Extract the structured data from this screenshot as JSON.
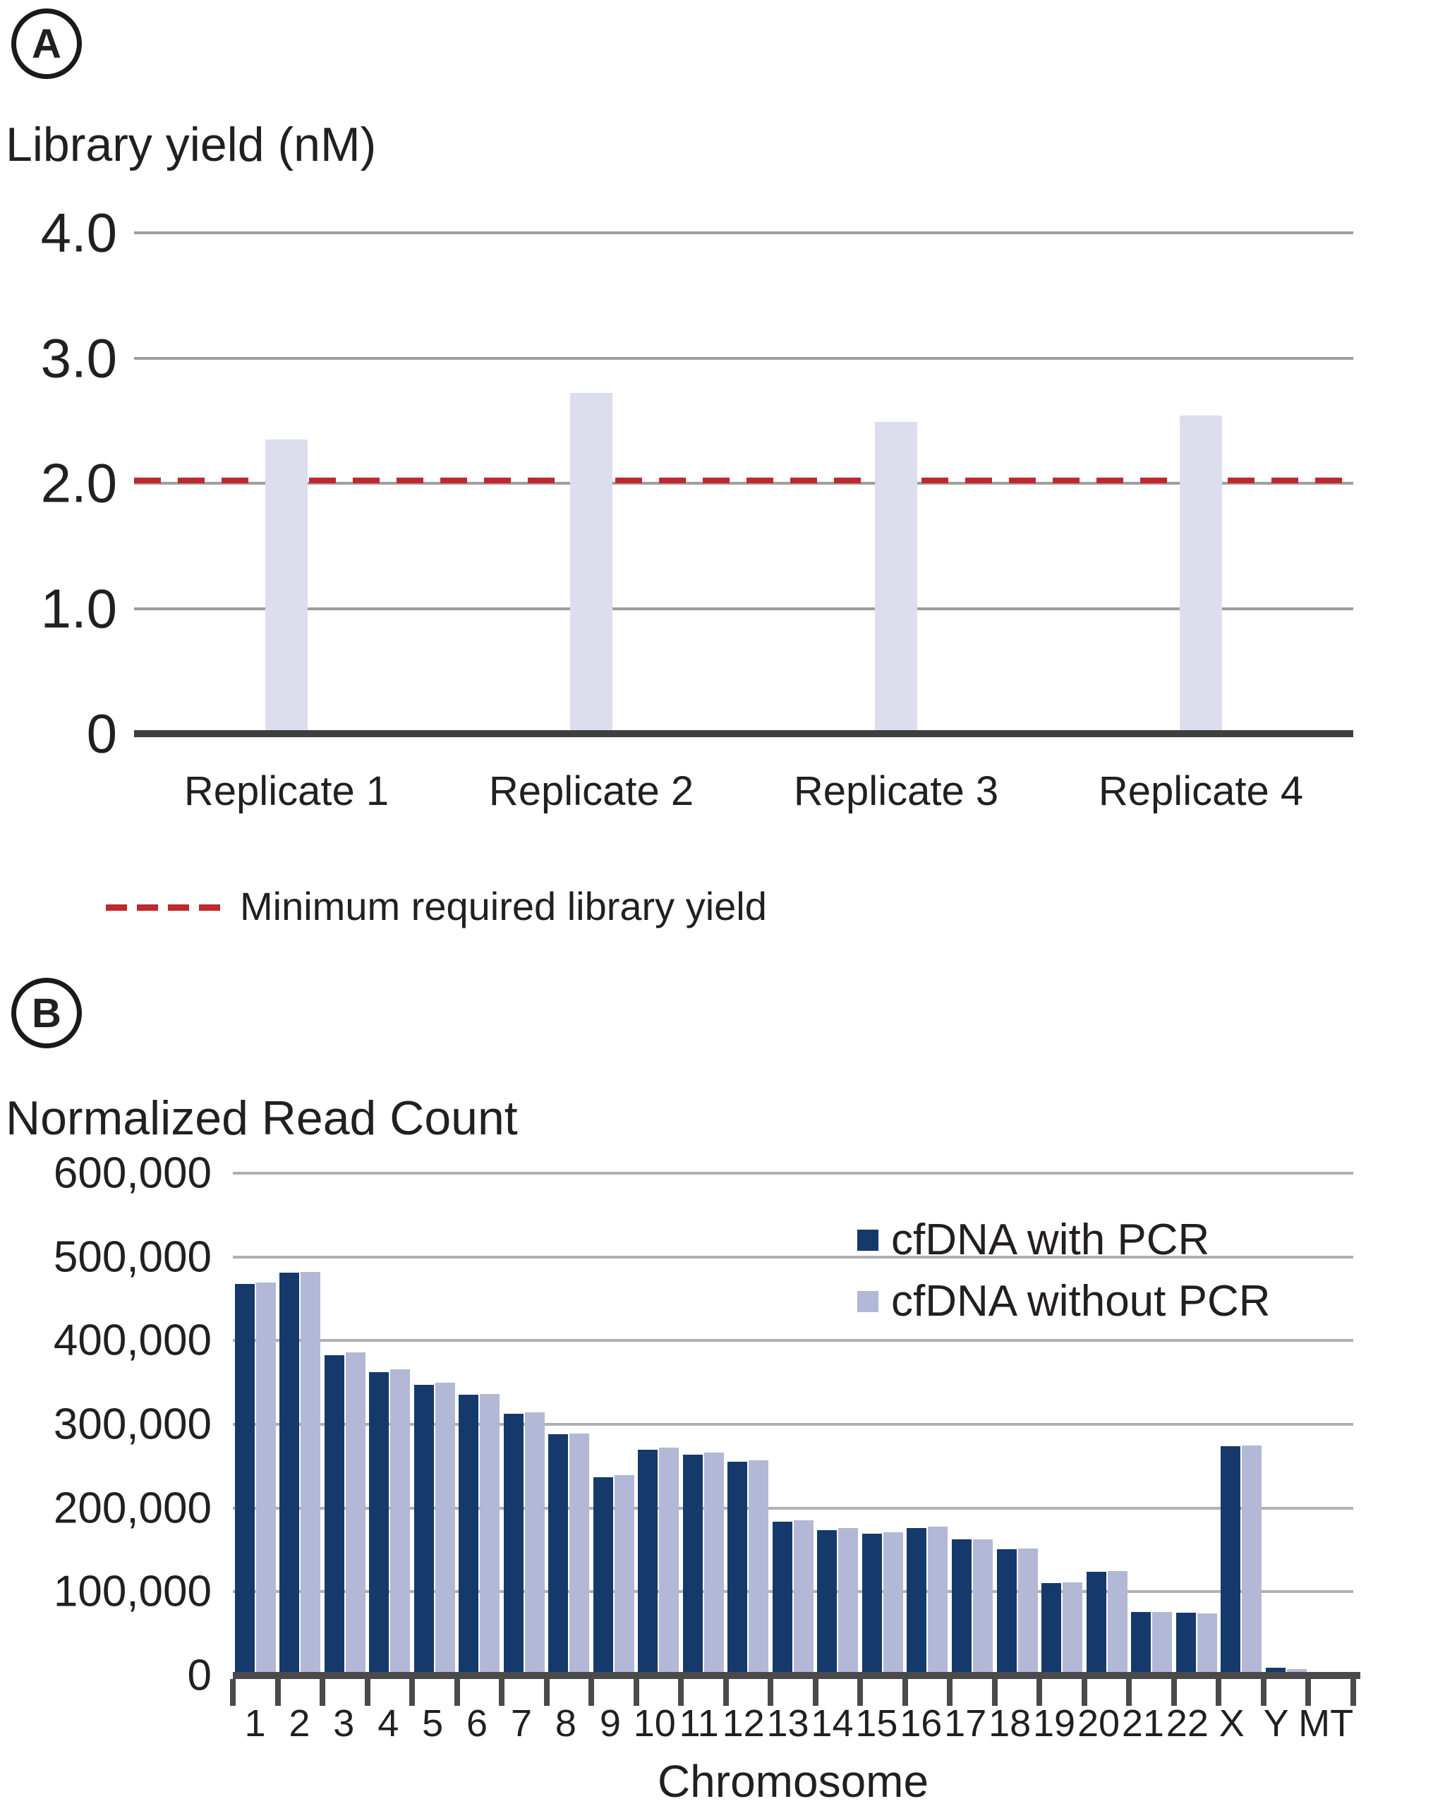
{
  "chart_data": [
    {
      "type": "bar",
      "badge": "A",
      "title": "Library yield (nM)",
      "categories": [
        "Replicate 1",
        "Replicate 2",
        "Replicate 3",
        "Replicate 4"
      ],
      "values": [
        2.35,
        2.72,
        2.49,
        2.54
      ],
      "ylim": [
        0,
        4.0
      ],
      "y_ticks": [
        {
          "label": "4.0",
          "value": 4.0
        },
        {
          "label": "3.0",
          "value": 3.0
        },
        {
          "label": "2.0",
          "value": 2.0
        },
        {
          "label": "1.0",
          "value": 1.0
        },
        {
          "label": "0",
          "value": 0
        }
      ],
      "grid": true,
      "bar_color": "#dcdeed",
      "threshold": {
        "value": 2.0,
        "label": "Minimum required library yield",
        "color": "#c1272d",
        "style": "dashed"
      },
      "legend_position": "bottom-left"
    },
    {
      "type": "bar",
      "badge": "B",
      "title": "Normalized Read Count",
      "xlabel": "Chromosome",
      "categories": [
        "1",
        "2",
        "3",
        "4",
        "5",
        "6",
        "7",
        "8",
        "9",
        "10",
        "11",
        "12",
        "13",
        "14",
        "15",
        "16",
        "17",
        "18",
        "19",
        "20",
        "21",
        "22",
        "X",
        "Y",
        "MT"
      ],
      "series": [
        {
          "name": "cfDNA with PCR",
          "color": "#16396b",
          "values": [
            468000,
            481000,
            383000,
            362000,
            347000,
            335000,
            313000,
            288000,
            237000,
            270000,
            264000,
            255000,
            184000,
            174000,
            169000,
            176000,
            163000,
            151000,
            110000,
            124000,
            76000,
            75000,
            274000,
            9000,
            1000
          ]
        },
        {
          "name": "cfDNA without PCR",
          "color": "#b2b8d6",
          "values": [
            469000,
            482000,
            386000,
            366000,
            350000,
            336000,
            314000,
            289000,
            239000,
            272000,
            266000,
            257000,
            185000,
            176000,
            171000,
            178000,
            163000,
            152000,
            111000,
            125000,
            76000,
            74000,
            275000,
            8000,
            1000
          ]
        }
      ],
      "ylim": [
        0,
        600000
      ],
      "y_ticks": [
        {
          "label": "600,000",
          "value": 600000
        },
        {
          "label": "500,000",
          "value": 500000
        },
        {
          "label": "400,000",
          "value": 400000
        },
        {
          "label": "300,000",
          "value": 300000
        },
        {
          "label": "200,000",
          "value": 200000
        },
        {
          "label": "100,000",
          "value": 100000
        },
        {
          "label": "0",
          "value": 0
        }
      ],
      "grid": true,
      "legend_position": "top-right"
    }
  ]
}
